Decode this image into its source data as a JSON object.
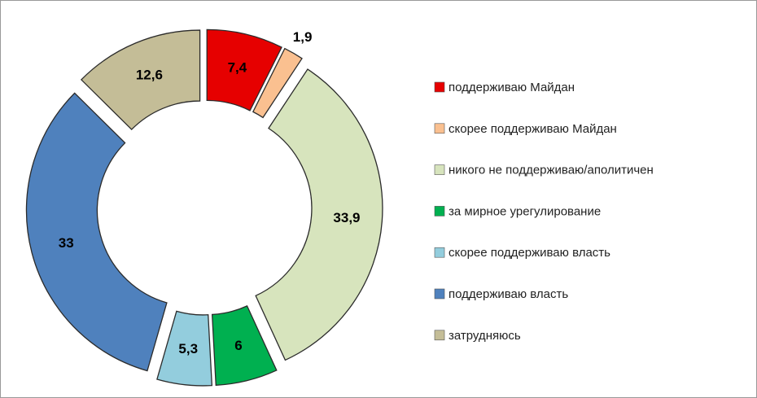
{
  "chart_data": {
    "type": "donut",
    "categories": [
      "поддерживаю Майдан",
      "скорее поддерживаю Майдан",
      "никого не поддерживаю/аполитичен",
      "за мирное урегулирование",
      "скорее поддерживаю власть",
      "поддерживаю власть",
      "затрудняюсь"
    ],
    "values": [
      7.4,
      1.9,
      33.9,
      6,
      5.3,
      33,
      12.6
    ],
    "value_labels": [
      "7,4",
      "1,9",
      "33,9",
      "6",
      "5,3",
      "33",
      "12,6"
    ],
    "colors": [
      "#e60000",
      "#fac090",
      "#d7e4bd",
      "#00b050",
      "#93cddd",
      "#4f81bd",
      "#c4bd97"
    ],
    "legend": "right"
  }
}
